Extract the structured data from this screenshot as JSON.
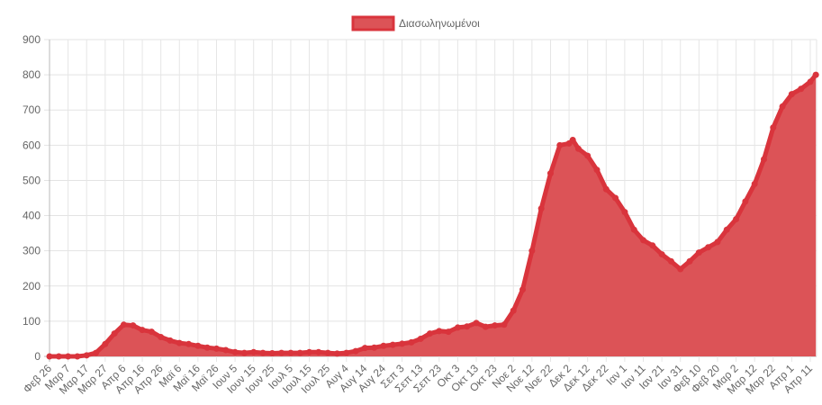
{
  "chart_data": {
    "type": "area",
    "title": "",
    "xlabel": "",
    "ylabel": "",
    "ylim": [
      0,
      900
    ],
    "y_ticks": [
      0,
      100,
      200,
      300,
      400,
      500,
      600,
      700,
      800,
      900
    ],
    "grid": true,
    "legend_position": "top",
    "x_start": "2020-02-26",
    "x_tick_step_days": 10,
    "x_tick_labels": [
      "Φεβ 26",
      "Μαρ 7",
      "Μαρ 17",
      "Μαρ 27",
      "Απρ 6",
      "Απρ 16",
      "Απρ 26",
      "Μαϊ 6",
      "Μαϊ 16",
      "Μαϊ 26",
      "Ιουν 5",
      "Ιουν 15",
      "Ιουν 25",
      "Ιουλ 5",
      "Ιουλ 15",
      "Ιουλ 25",
      "Αυγ 4",
      "Αυγ 14",
      "Αυγ 24",
      "Σεπ 3",
      "Σεπ 13",
      "Σεπ 23",
      "Οκτ 3",
      "Οκτ 13",
      "Οκτ 23",
      "Νοε 2",
      "Νοε 12",
      "Νοε 22",
      "Δεκ 2",
      "Δεκ 12",
      "Δεκ 22",
      "Ιαν 1",
      "Ιαν 11",
      "Ιαν 21",
      "Ιαν 31",
      "Φεβ 10",
      "Φεβ 20",
      "Μαρ 2",
      "Μαρ 12",
      "Μαρ 22",
      "Απρ 1",
      "Απρ 11"
    ],
    "series": [
      {
        "name": "Διασωληνωμένοι",
        "color": "#d9343c",
        "fill": "#dc5357",
        "points": [
          [
            "2020-02-26",
            0
          ],
          [
            "2020-03-02",
            0
          ],
          [
            "2020-03-07",
            0
          ],
          [
            "2020-03-12",
            0
          ],
          [
            "2020-03-17",
            3
          ],
          [
            "2020-03-22",
            10
          ],
          [
            "2020-03-27",
            35
          ],
          [
            "2020-04-01",
            65
          ],
          [
            "2020-04-06",
            90
          ],
          [
            "2020-04-11",
            88
          ],
          [
            "2020-04-16",
            75
          ],
          [
            "2020-04-21",
            70
          ],
          [
            "2020-04-26",
            55
          ],
          [
            "2020-05-01",
            45
          ],
          [
            "2020-05-06",
            38
          ],
          [
            "2020-05-11",
            35
          ],
          [
            "2020-05-16",
            30
          ],
          [
            "2020-05-21",
            25
          ],
          [
            "2020-05-26",
            22
          ],
          [
            "2020-05-31",
            18
          ],
          [
            "2020-06-05",
            12
          ],
          [
            "2020-06-10",
            10
          ],
          [
            "2020-06-15",
            12
          ],
          [
            "2020-06-20",
            10
          ],
          [
            "2020-06-25",
            9
          ],
          [
            "2020-06-30",
            10
          ],
          [
            "2020-07-05",
            10
          ],
          [
            "2020-07-10",
            10
          ],
          [
            "2020-07-15",
            12
          ],
          [
            "2020-07-20",
            12
          ],
          [
            "2020-07-25",
            10
          ],
          [
            "2020-07-30",
            8
          ],
          [
            "2020-08-04",
            10
          ],
          [
            "2020-08-09",
            15
          ],
          [
            "2020-08-14",
            24
          ],
          [
            "2020-08-19",
            25
          ],
          [
            "2020-08-24",
            30
          ],
          [
            "2020-08-29",
            33
          ],
          [
            "2020-09-03",
            36
          ],
          [
            "2020-09-08",
            40
          ],
          [
            "2020-09-13",
            50
          ],
          [
            "2020-09-18",
            65
          ],
          [
            "2020-09-23",
            72
          ],
          [
            "2020-09-28",
            70
          ],
          [
            "2020-10-03",
            82
          ],
          [
            "2020-10-08",
            85
          ],
          [
            "2020-10-13",
            95
          ],
          [
            "2020-10-18",
            84
          ],
          [
            "2020-10-23",
            88
          ],
          [
            "2020-10-28",
            90
          ],
          [
            "2020-11-02",
            130
          ],
          [
            "2020-11-07",
            190
          ],
          [
            "2020-11-12",
            300
          ],
          [
            "2020-11-17",
            420
          ],
          [
            "2020-11-22",
            520
          ],
          [
            "2020-11-27",
            600
          ],
          [
            "2020-12-02",
            605
          ],
          [
            "2020-12-04",
            615
          ],
          [
            "2020-12-07",
            590
          ],
          [
            "2020-12-12",
            570
          ],
          [
            "2020-12-17",
            530
          ],
          [
            "2020-12-22",
            475
          ],
          [
            "2020-12-27",
            450
          ],
          [
            "2021-01-01",
            410
          ],
          [
            "2021-01-06",
            360
          ],
          [
            "2021-01-11",
            330
          ],
          [
            "2021-01-16",
            315
          ],
          [
            "2021-01-21",
            290
          ],
          [
            "2021-01-26",
            270
          ],
          [
            "2021-01-31",
            248
          ],
          [
            "2021-02-05",
            270
          ],
          [
            "2021-02-10",
            295
          ],
          [
            "2021-02-15",
            310
          ],
          [
            "2021-02-20",
            325
          ],
          [
            "2021-02-25",
            360
          ],
          [
            "2021-03-02",
            390
          ],
          [
            "2021-03-07",
            440
          ],
          [
            "2021-03-12",
            490
          ],
          [
            "2021-03-17",
            560
          ],
          [
            "2021-03-22",
            650
          ],
          [
            "2021-03-27",
            710
          ],
          [
            "2021-04-01",
            745
          ],
          [
            "2021-04-06",
            760
          ],
          [
            "2021-04-11",
            780
          ],
          [
            "2021-04-14",
            800
          ]
        ]
      }
    ]
  }
}
